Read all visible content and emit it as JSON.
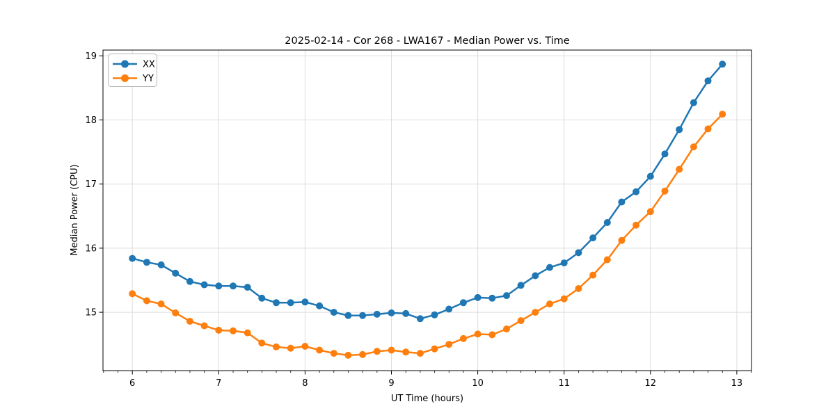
{
  "chart_data": {
    "type": "line",
    "title": "2025-02-14 - Cor 268 - LWA167 - Median Power vs. Time",
    "xlabel": "UT Time (hours)",
    "ylabel": "Median Power (CPU)",
    "xlim": [
      5.66,
      13.17
    ],
    "ylim": [
      14.09,
      19.09
    ],
    "x_major_ticks": [
      6,
      7,
      8,
      9,
      10,
      11,
      12,
      13
    ],
    "y_major_ticks": [
      15,
      16,
      17,
      18,
      19
    ],
    "x_minor_tick_interval_hours": 0.16667,
    "grid": true,
    "grid_color": "#dddddd",
    "legend_position": "upper-left",
    "x": [
      6.0,
      6.1667,
      6.3333,
      6.5,
      6.6667,
      6.8333,
      7.0,
      7.1667,
      7.3333,
      7.5,
      7.6667,
      7.8333,
      8.0,
      8.1667,
      8.3333,
      8.5,
      8.6667,
      8.8333,
      9.0,
      9.1667,
      9.3333,
      9.5,
      9.6667,
      9.8333,
      10.0,
      10.1667,
      10.3333,
      10.5,
      10.6667,
      10.8333,
      11.0,
      11.1667,
      11.3333,
      11.5,
      11.6667,
      11.8333,
      12.0,
      12.1667,
      12.3333,
      12.5,
      12.6667,
      12.8333
    ],
    "series": [
      {
        "name": "XX",
        "color": "#1f77b4",
        "marker": "circle",
        "values": [
          15.84,
          15.78,
          15.74,
          15.61,
          15.48,
          15.43,
          15.41,
          15.41,
          15.39,
          15.22,
          15.15,
          15.15,
          15.16,
          15.1,
          15.0,
          14.95,
          14.95,
          14.97,
          14.99,
          14.98,
          14.9,
          14.96,
          15.05,
          15.15,
          15.23,
          15.22,
          15.26,
          15.42,
          15.57,
          15.7,
          15.77,
          15.93,
          16.16,
          16.4,
          16.72,
          16.88,
          17.12,
          17.47,
          17.85,
          18.27,
          18.61,
          18.87
        ]
      },
      {
        "name": "YY",
        "color": "#ff7f0e",
        "marker": "circle",
        "values": [
          15.29,
          15.18,
          15.13,
          14.99,
          14.86,
          14.79,
          14.72,
          14.71,
          14.68,
          14.52,
          14.46,
          14.44,
          14.47,
          14.41,
          14.36,
          14.33,
          14.34,
          14.39,
          14.41,
          14.38,
          14.36,
          14.43,
          14.5,
          14.59,
          14.66,
          14.65,
          14.74,
          14.87,
          15.0,
          15.13,
          15.21,
          15.37,
          15.58,
          15.82,
          16.12,
          16.36,
          16.57,
          16.89,
          17.23,
          17.58,
          17.86,
          18.09
        ]
      }
    ]
  }
}
